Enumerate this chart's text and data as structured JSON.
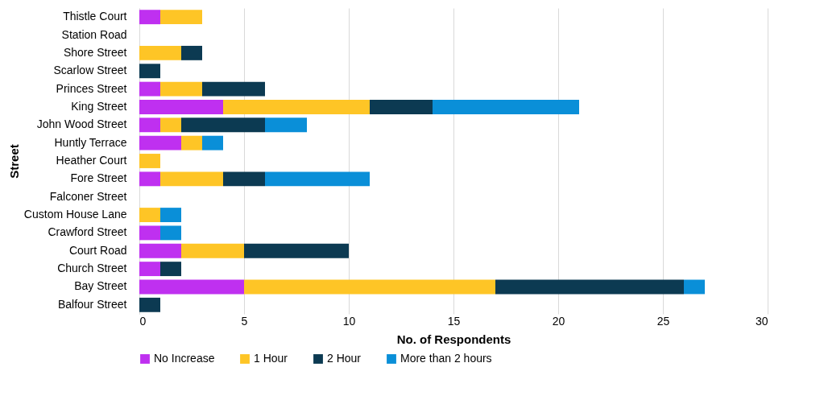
{
  "chart_data": {
    "type": "bar",
    "orientation": "horizontal",
    "stacked": true,
    "xlabel": "No. of Respondents",
    "ylabel": "Street",
    "categories": [
      "Thistle Court",
      "Station Road",
      "Shore Street",
      "Scarlow Street",
      "Princes Street",
      "King Street",
      "John Wood Street",
      "Huntly Terrace",
      "Heather Court",
      "Fore Street",
      "Falconer Street",
      "Custom House Lane",
      "Crawford Street",
      "Court Road",
      "Church Street",
      "Bay Street",
      "Balfour Street"
    ],
    "series": [
      {
        "name": "No Increase",
        "color": "#bf30f0",
        "values": [
          1,
          0,
          0,
          0,
          1,
          4,
          1,
          2,
          0,
          1,
          0,
          0,
          1,
          2,
          1,
          5,
          0
        ]
      },
      {
        "name": "1 Hour",
        "color": "#fec526",
        "values": [
          2,
          0,
          2,
          0,
          2,
          7,
          1,
          1,
          1,
          3,
          0,
          1,
          0,
          3,
          0,
          12,
          0
        ]
      },
      {
        "name": "2 Hour",
        "color": "#0c3a52",
        "values": [
          0,
          0,
          1,
          1,
          3,
          3,
          4,
          0,
          0,
          2,
          0,
          0,
          0,
          5,
          1,
          9,
          1
        ]
      },
      {
        "name": "More than 2 hours",
        "color": "#0a8fd8",
        "values": [
          0,
          0,
          0,
          0,
          0,
          7,
          2,
          1,
          0,
          5,
          0,
          1,
          1,
          0,
          0,
          1,
          0
        ]
      }
    ],
    "xlim": [
      0,
      30
    ],
    "xticks": [
      0,
      5,
      10,
      15,
      20,
      25,
      30
    ],
    "grid": "x",
    "legend": "bottom"
  }
}
